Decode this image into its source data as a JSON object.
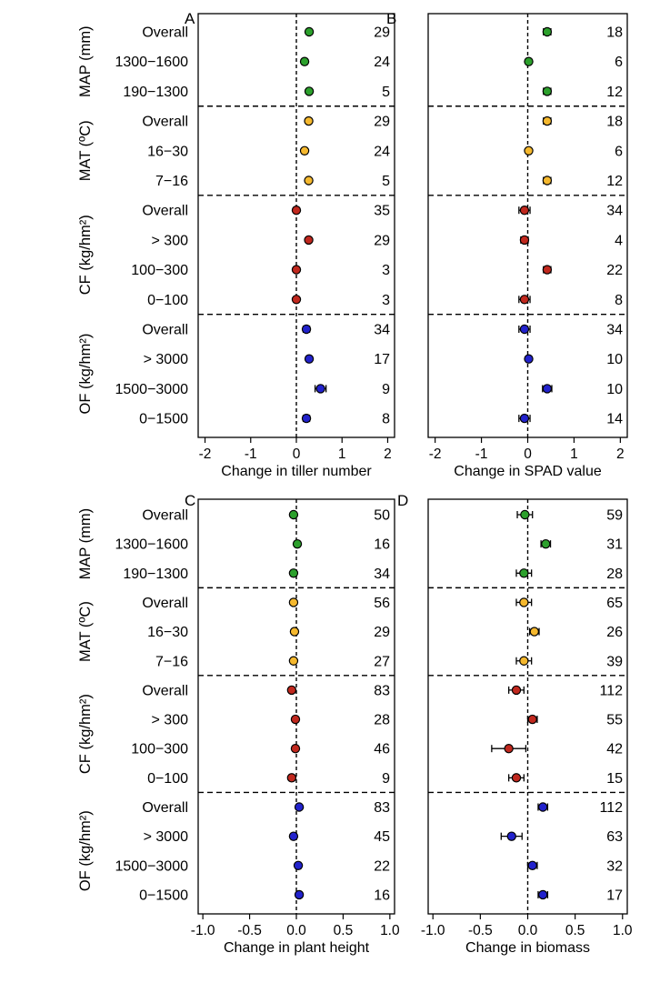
{
  "figure": {
    "rows": [
      {
        "group": "MAP (mm)",
        "label": "Overall"
      },
      {
        "group": "MAP (mm)",
        "label": "1300−1600"
      },
      {
        "group": "MAP (mm)",
        "label": "190−1300"
      },
      {
        "group": "MAT (ºC)",
        "label": "Overall"
      },
      {
        "group": "MAT (ºC)",
        "label": "16−30"
      },
      {
        "group": "MAT (ºC)",
        "label": "7−16"
      },
      {
        "group": "CF (kg/hm²)",
        "label": "Overall"
      },
      {
        "group": "CF (kg/hm²)",
        "label": "> 300"
      },
      {
        "group": "CF (kg/hm²)",
        "label": "100−300"
      },
      {
        "group": "CF (kg/hm²)",
        "label": "0−100"
      },
      {
        "group": "OF (kg/hm²)",
        "label": "Overall"
      },
      {
        "group": "OF (kg/hm²)",
        "label": "> 3000"
      },
      {
        "group": "OF (kg/hm²)",
        "label": "1500−3000"
      },
      {
        "group": "OF (kg/hm²)",
        "label": "0−1500"
      }
    ],
    "group_labels": [
      "MAP (mm)",
      "MAT (ºC)",
      "CF (kg/hm²)",
      "OF (kg/hm²)"
    ],
    "group_colors": [
      "#2ca02c",
      "#f5b82e",
      "#c0281e",
      "#2222cc"
    ],
    "panel_letters": [
      "A",
      "B",
      "C",
      "D"
    ]
  },
  "chart_data": [
    {
      "panel": "A",
      "type": "scatter",
      "xlabel": "Change in tiller number",
      "xlim": [
        -2.15,
        2.15
      ],
      "xticks": [
        -2,
        -1,
        0,
        1,
        2
      ],
      "xtick_labels": [
        "-2",
        "-1",
        "0",
        "1",
        "2"
      ],
      "values": [
        0.28,
        0.18,
        0.28,
        0.27,
        0.18,
        0.27,
        0.0,
        0.27,
        0.0,
        0.0,
        0.22,
        0.28,
        0.53,
        0.22
      ],
      "ci": [
        0.05,
        0.05,
        0.05,
        0.05,
        0.05,
        0.05,
        0.03,
        0.05,
        0.04,
        0.04,
        0.07,
        0.05,
        0.12,
        0.07
      ],
      "n": [
        "29",
        "24",
        "5",
        "29",
        "24",
        "5",
        "35",
        "29",
        "3",
        "3",
        "34",
        "17",
        "9",
        "8"
      ]
    },
    {
      "panel": "B",
      "type": "scatter",
      "xlabel": "Change in SPAD value",
      "xlim": [
        -2.15,
        2.15
      ],
      "xticks": [
        -2,
        -1,
        0,
        1,
        2
      ],
      "xtick_labels": [
        "-2",
        "-1",
        "0",
        "1",
        "2"
      ],
      "values": [
        0.42,
        0.02,
        0.42,
        0.42,
        0.02,
        0.42,
        -0.07,
        -0.07,
        0.42,
        -0.07,
        -0.07,
        0.02,
        0.42,
        -0.07
      ],
      "ci": [
        0.08,
        0.05,
        0.08,
        0.08,
        0.05,
        0.08,
        0.12,
        0.08,
        0.08,
        0.12,
        0.12,
        0.05,
        0.1,
        0.12
      ],
      "n": [
        "18",
        "6",
        "12",
        "18",
        "6",
        "12",
        "34",
        "4",
        "22",
        "8",
        "34",
        "10",
        "10",
        "14"
      ]
    },
    {
      "panel": "C",
      "type": "scatter",
      "xlabel": "Change in plant height",
      "xlim": [
        -1.05,
        1.05
      ],
      "xticks": [
        -1.0,
        -0.5,
        0.0,
        0.5,
        1.0
      ],
      "xtick_labels": [
        "-1.0",
        "-0.5",
        "0.0",
        "0.5",
        "1.0"
      ],
      "values": [
        -0.03,
        0.01,
        -0.03,
        -0.03,
        -0.02,
        -0.03,
        -0.05,
        -0.01,
        -0.01,
        -0.05,
        0.03,
        -0.03,
        0.02,
        0.03
      ],
      "ci": [
        0.025,
        0.02,
        0.025,
        0.025,
        0.02,
        0.025,
        0.025,
        0.02,
        0.02,
        0.025,
        0.025,
        0.025,
        0.025,
        0.025
      ],
      "n": [
        "50",
        "16",
        "34",
        "56",
        "29",
        "27",
        "83",
        "28",
        "46",
        "9",
        "83",
        "45",
        "22",
        "16"
      ]
    },
    {
      "panel": "D",
      "type": "scatter",
      "xlabel": "Change in biomass",
      "xlim": [
        -1.05,
        1.05
      ],
      "xticks": [
        -1.0,
        -0.5,
        0.0,
        0.5,
        1.0
      ],
      "xtick_labels": [
        "-1.0",
        "-0.5",
        "0.0",
        "0.5",
        "1.0"
      ],
      "values": [
        -0.03,
        0.19,
        -0.04,
        -0.04,
        0.07,
        -0.04,
        -0.12,
        0.05,
        -0.2,
        -0.12,
        0.16,
        -0.17,
        0.05,
        0.16
      ],
      "ci": [
        0.08,
        0.05,
        0.08,
        0.08,
        0.05,
        0.08,
        0.08,
        0.05,
        0.18,
        0.08,
        0.05,
        0.11,
        0.05,
        0.05
      ],
      "n": [
        "59",
        "31",
        "28",
        "65",
        "26",
        "39",
        "112",
        "55",
        "42",
        "15",
        "112",
        "63",
        "32",
        "17"
      ]
    }
  ]
}
